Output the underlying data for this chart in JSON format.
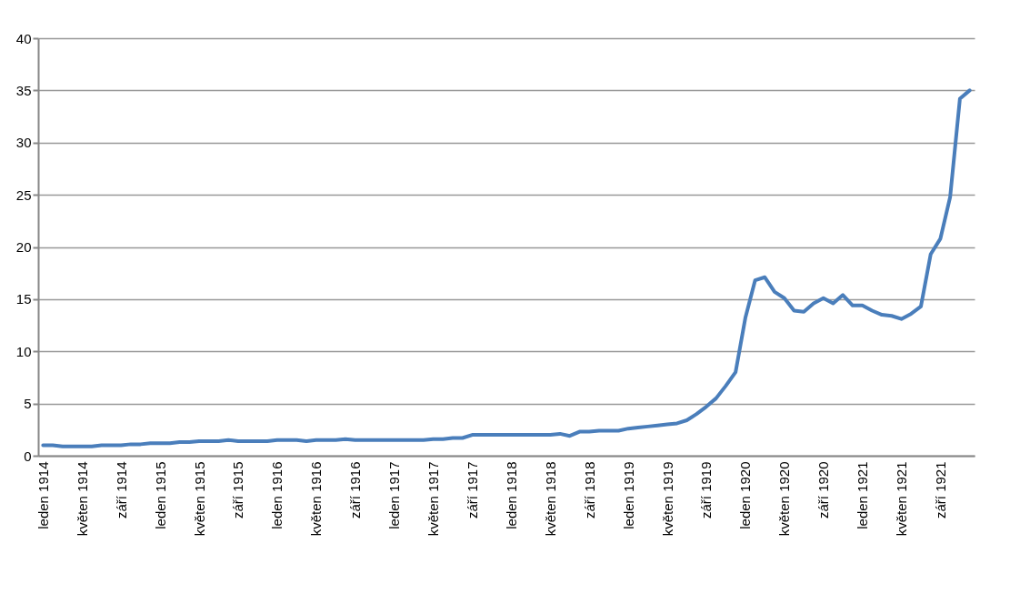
{
  "chart_data": {
    "type": "line",
    "categories": [
      "leden 1914",
      null,
      null,
      null,
      "květen 1914",
      null,
      null,
      null,
      "září 1914",
      null,
      null,
      null,
      "leden 1915",
      null,
      null,
      null,
      "květen 1915",
      null,
      null,
      null,
      "září 1915",
      null,
      null,
      null,
      "leden 1916",
      null,
      null,
      null,
      "květen 1916",
      null,
      null,
      null,
      "září 1916",
      null,
      null,
      null,
      "leden 1917",
      null,
      null,
      null,
      "květen 1917",
      null,
      null,
      null,
      "září 1917",
      null,
      null,
      null,
      "leden 1918",
      null,
      null,
      null,
      "květen 1918",
      null,
      null,
      null,
      "září 1918",
      null,
      null,
      null,
      "leden 1919",
      null,
      null,
      null,
      "květen 1919",
      null,
      null,
      null,
      "září 1919",
      null,
      null,
      null,
      "leden 1920",
      null,
      null,
      null,
      "květen 1920",
      null,
      null,
      null,
      "září 1920",
      null,
      null,
      null,
      "leden 1921",
      null,
      null,
      null,
      "květen 1921",
      null,
      null,
      null,
      "září 1921",
      null,
      null,
      null
    ],
    "series": [
      {
        "color": "#4a7ebb",
        "values": [
          1.0,
          1.0,
          0.9,
          0.9,
          0.9,
          0.9,
          1.0,
          1.0,
          1.0,
          1.1,
          1.1,
          1.2,
          1.2,
          1.2,
          1.3,
          1.3,
          1.4,
          1.4,
          1.4,
          1.5,
          1.4,
          1.4,
          1.4,
          1.4,
          1.5,
          1.5,
          1.5,
          1.4,
          1.5,
          1.5,
          1.5,
          1.6,
          1.5,
          1.5,
          1.5,
          1.5,
          1.5,
          1.5,
          1.5,
          1.5,
          1.6,
          1.6,
          1.7,
          1.7,
          2.0,
          2.0,
          2.0,
          2.0,
          2.0,
          2.0,
          2.0,
          2.0,
          2.0,
          2.1,
          1.9,
          2.3,
          2.3,
          2.4,
          2.4,
          2.4,
          2.6,
          2.7,
          2.8,
          2.9,
          3.0,
          3.1,
          3.4,
          4.0,
          4.7,
          5.5,
          6.7,
          8.0,
          13.2,
          16.8,
          17.1,
          15.7,
          15.1,
          13.9,
          13.8,
          14.6,
          15.1,
          14.6,
          15.4,
          14.4,
          14.4,
          13.9,
          13.5,
          13.4,
          13.1,
          13.6,
          14.3,
          19.3,
          20.8,
          24.8,
          34.2,
          35.0
        ]
      }
    ],
    "ylim": [
      0,
      40
    ],
    "yticks": [
      0,
      5,
      10,
      15,
      20,
      25,
      30,
      35,
      40
    ],
    "grid": "y",
    "legend": false,
    "line_style": "solid",
    "marker": "none"
  }
}
